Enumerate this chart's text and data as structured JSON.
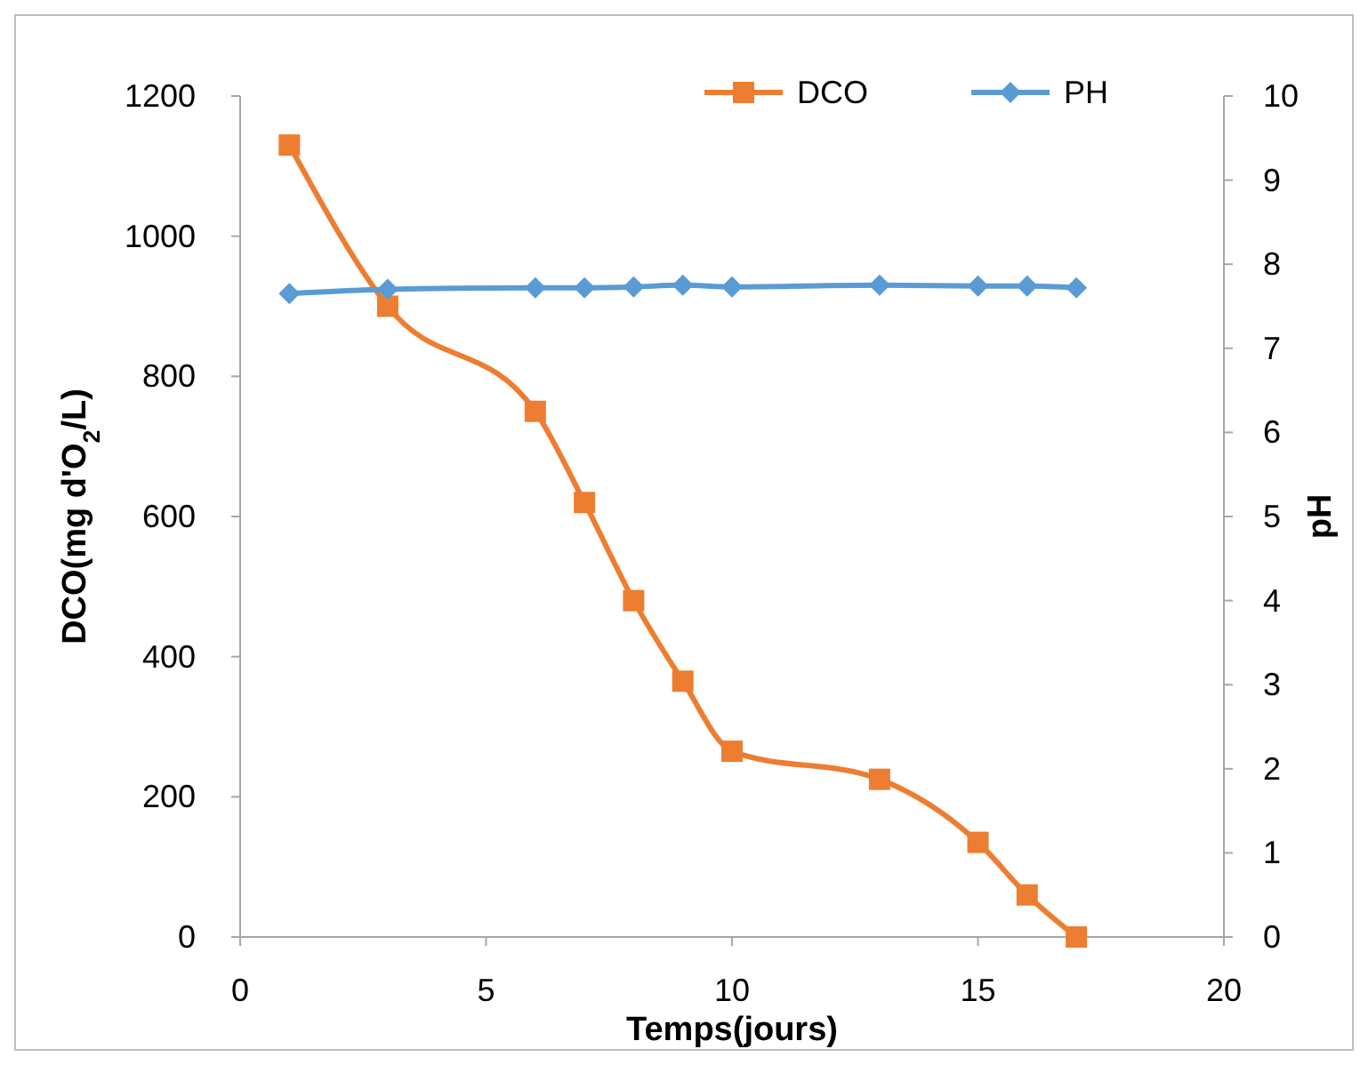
{
  "chart_data": {
    "type": "line",
    "xlabel": "Temps(jours)",
    "ylabel": "DCO(mg d'O$_{2}$/L)",
    "y2label": "pH",
    "xlim": [
      0,
      20
    ],
    "xticks": [
      0,
      5,
      10,
      15,
      20
    ],
    "ylim": [
      0,
      1200
    ],
    "yticks": [
      0,
      200,
      400,
      600,
      800,
      1000,
      1200
    ],
    "y2lim": [
      0,
      10
    ],
    "y2ticks": [
      0,
      1,
      2,
      3,
      4,
      5,
      6,
      7,
      8,
      9,
      10
    ],
    "grid": false,
    "legend": "top right",
    "line_style": "solid",
    "series": [
      {
        "name": "DCO",
        "color": "#ed7d31",
        "marker": "square",
        "x": [
          1,
          3,
          6,
          7,
          8,
          9,
          10,
          13,
          15,
          16,
          17
        ],
        "values": [
          1130,
          900,
          750,
          620,
          480,
          365,
          265,
          225,
          135,
          60,
          0
        ]
      },
      {
        "name": "PH",
        "color": "#5b9bd5",
        "marker": "diamond",
        "axis": "y2",
        "x": [
          1,
          3,
          6,
          7,
          8,
          9,
          10,
          13,
          15,
          16,
          17
        ],
        "values": [
          7.65,
          7.7,
          7.72,
          7.72,
          7.73,
          7.75,
          7.73,
          7.75,
          7.74,
          7.74,
          7.72
        ]
      }
    ]
  }
}
